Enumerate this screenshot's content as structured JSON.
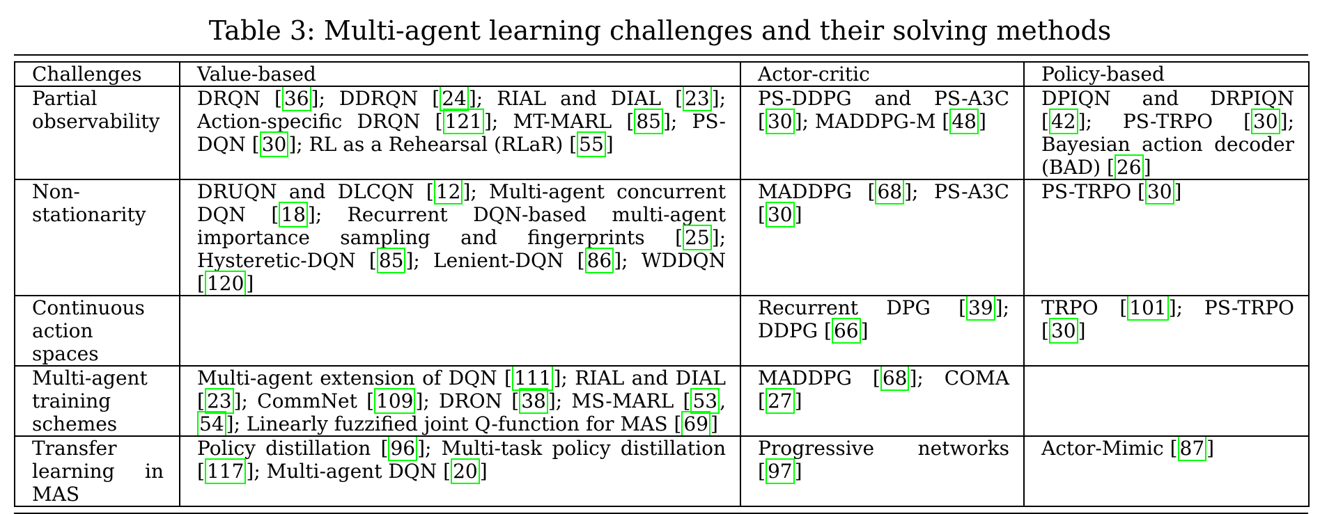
{
  "caption": "Table 3: Multi-agent learning challenges and their solving methods",
  "headers": [
    "Challenges",
    "Value-based",
    "Actor-critic",
    "Policy-based"
  ],
  "rows": [
    {
      "challenge": "Partial observability",
      "value_based": [
        {
          "t": "DRQN ["
        },
        {
          "r": "36"
        },
        {
          "t": "]; DDRQN ["
        },
        {
          "r": "24"
        },
        {
          "t": "]; RIAL and DIAL ["
        },
        {
          "r": "23"
        },
        {
          "t": "]; Action-specific DRQN ["
        },
        {
          "r": "121"
        },
        {
          "t": "]; MT-MARL ["
        },
        {
          "r": "85"
        },
        {
          "t": "]; PS-DQN ["
        },
        {
          "r": "30"
        },
        {
          "t": "]; RL as a Rehearsal (RLaR) ["
        },
        {
          "r": "55"
        },
        {
          "t": "]"
        }
      ],
      "actor_critic": [
        {
          "t": "PS-DDPG and PS-A3C ["
        },
        {
          "r": "30"
        },
        {
          "t": "]; MADDPG-M ["
        },
        {
          "r": "48"
        },
        {
          "t": "]"
        }
      ],
      "policy_based": [
        {
          "t": "DPIQN and DRPIQN ["
        },
        {
          "r": "42"
        },
        {
          "t": "]; PS-TRPO ["
        },
        {
          "r": "30"
        },
        {
          "t": "]; Bayesian action decoder (BAD) ["
        },
        {
          "r": "26"
        },
        {
          "t": "]"
        }
      ]
    },
    {
      "challenge": "Non-stationarity",
      "value_based": [
        {
          "t": "DRUQN and DLCQN ["
        },
        {
          "r": "12"
        },
        {
          "t": "]; Multi-agent concurrent DQN ["
        },
        {
          "r": "18"
        },
        {
          "t": "]; Recurrent DQN-based multi-agent importance sampling and fingerprints ["
        },
        {
          "r": "25"
        },
        {
          "t": "]; Hysteretic-DQN ["
        },
        {
          "r": "85"
        },
        {
          "t": "]; Lenient-DQN ["
        },
        {
          "r": "86"
        },
        {
          "t": "]; WDDQN ["
        },
        {
          "r": "120"
        },
        {
          "t": "]"
        }
      ],
      "actor_critic": [
        {
          "t": "MADDPG ["
        },
        {
          "r": "68"
        },
        {
          "t": "]; PS-A3C ["
        },
        {
          "r": "30"
        },
        {
          "t": "]"
        }
      ],
      "policy_based": [
        {
          "t": "PS-TRPO ["
        },
        {
          "r": "30"
        },
        {
          "t": "]"
        }
      ]
    },
    {
      "challenge": "Continuous action spaces",
      "value_based": [],
      "actor_critic": [
        {
          "t": "Recurrent DPG ["
        },
        {
          "r": "39"
        },
        {
          "t": "]; DDPG ["
        },
        {
          "r": "66"
        },
        {
          "t": "]"
        }
      ],
      "policy_based": [
        {
          "t": "TRPO ["
        },
        {
          "r": "101"
        },
        {
          "t": "]; PS-TRPO ["
        },
        {
          "r": "30"
        },
        {
          "t": "]"
        }
      ]
    },
    {
      "challenge": "Multi-agent training schemes",
      "value_based": [
        {
          "t": "Multi-agent extension of DQN ["
        },
        {
          "r": "111"
        },
        {
          "t": "]; RIAL and DIAL ["
        },
        {
          "r": "23"
        },
        {
          "t": "]; CommNet ["
        },
        {
          "r": "109"
        },
        {
          "t": "]; DRON ["
        },
        {
          "r": "38"
        },
        {
          "t": "]; MS-MARL ["
        },
        {
          "r": "53"
        },
        {
          "t": ", "
        },
        {
          "r": "54"
        },
        {
          "t": "]; Linearly fuzzified joint Q-function for MAS ["
        },
        {
          "r": "69"
        },
        {
          "t": "]"
        }
      ],
      "actor_critic": [
        {
          "t": "MADDPG ["
        },
        {
          "r": "68"
        },
        {
          "t": "]; COMA ["
        },
        {
          "r": "27"
        },
        {
          "t": "]"
        }
      ],
      "policy_based": []
    },
    {
      "challenge": "Transfer learning in MAS",
      "value_based": [
        {
          "t": "Policy distillation ["
        },
        {
          "r": "96"
        },
        {
          "t": "]; Multi-task policy distillation ["
        },
        {
          "r": "117"
        },
        {
          "t": "]; Multi-agent DQN ["
        },
        {
          "r": "20"
        },
        {
          "t": "]"
        }
      ],
      "actor_critic": [
        {
          "t": "Progressive networks ["
        },
        {
          "r": "97"
        },
        {
          "t": "]"
        }
      ],
      "policy_based": [
        {
          "t": "Actor-Mimic ["
        },
        {
          "r": "87"
        },
        {
          "t": "]"
        }
      ]
    }
  ]
}
